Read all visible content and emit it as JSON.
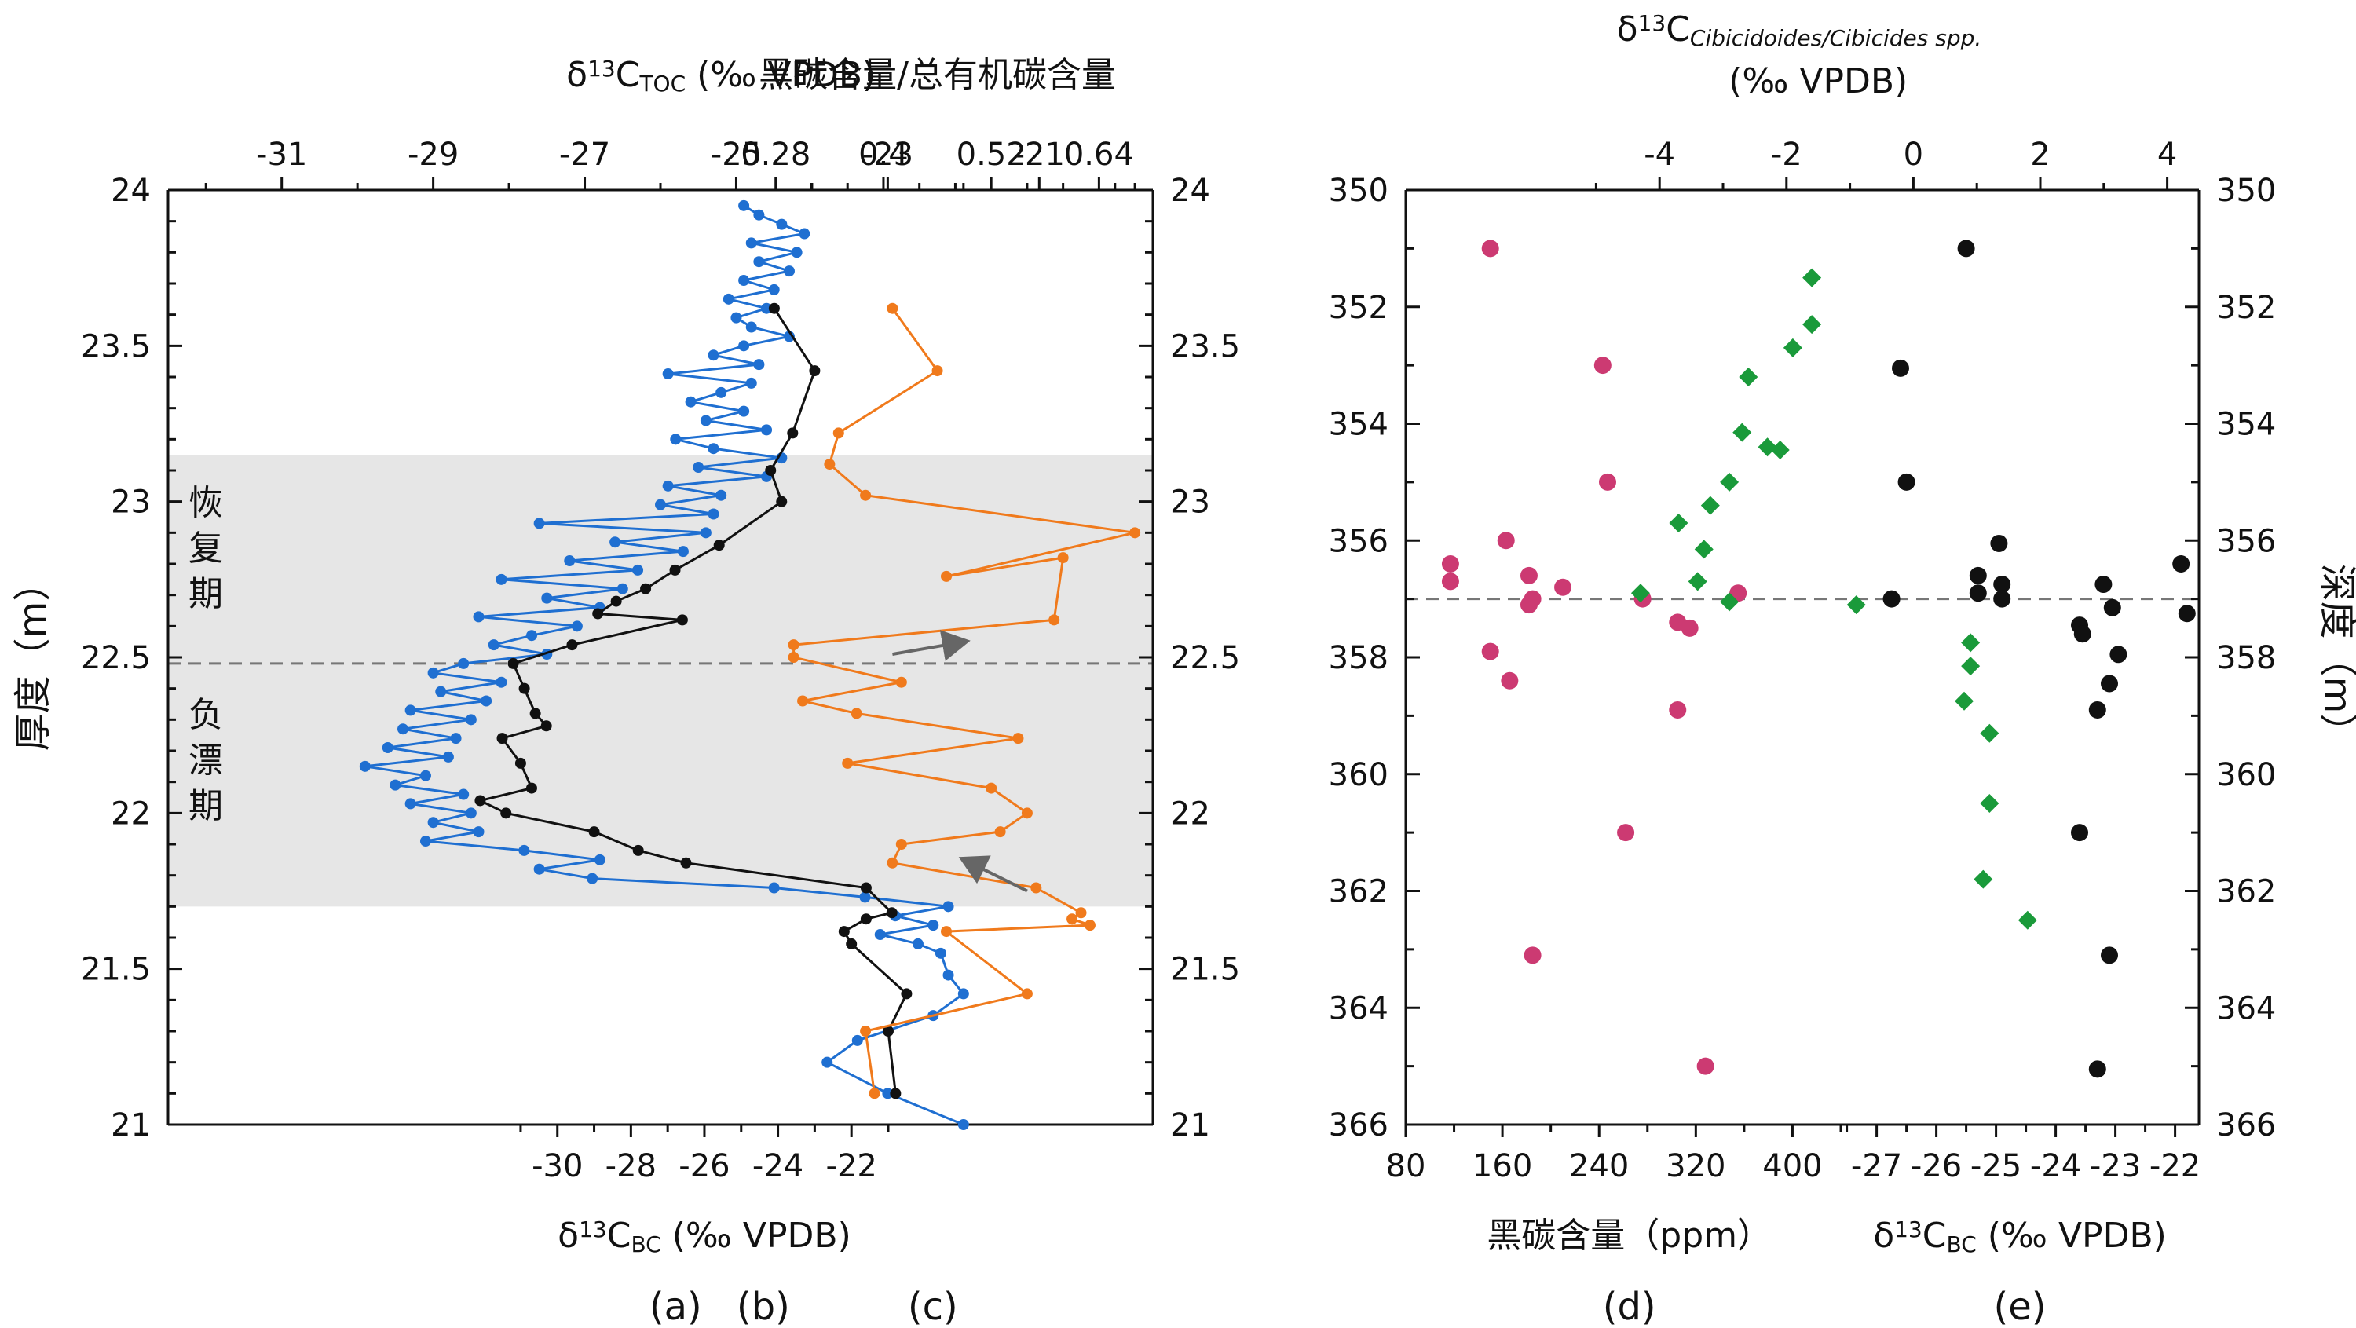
{
  "chart_data": [
    {
      "id": "a",
      "type": "line",
      "panel_label": "(a)",
      "xlabel": "δ13C_TOC (‰ VPDB)",
      "xlabel_parts": {
        "delta": "δ",
        "sup": "13",
        "base": "C",
        "sub": "TOC",
        "unit": " (‰ VPDB)"
      },
      "xlim": [
        -32.5,
        -19.5
      ],
      "xticks": [
        "-31",
        "-29",
        "-27",
        "-25",
        "-23",
        "-21"
      ],
      "ylabel": "厚度（m）",
      "ylim": [
        21,
        24
      ],
      "yticks": [
        "21",
        "21.5",
        "22",
        "22.5",
        "23",
        "23.5",
        "24"
      ],
      "shaded_band_y": [
        21.7,
        23.15
      ],
      "dashed_line_y": 22.48,
      "color": "#1f6fd1",
      "annotations": [
        {
          "text": "恢复期"
        },
        {
          "text": "负漂期"
        }
      ],
      "points": [
        [
          -24.9,
          23.95
        ],
        [
          -24.7,
          23.92
        ],
        [
          -24.4,
          23.89
        ],
        [
          -24.1,
          23.86
        ],
        [
          -24.8,
          23.83
        ],
        [
          -24.2,
          23.8
        ],
        [
          -24.7,
          23.77
        ],
        [
          -24.3,
          23.74
        ],
        [
          -24.9,
          23.71
        ],
        [
          -24.5,
          23.68
        ],
        [
          -25.1,
          23.65
        ],
        [
          -24.6,
          23.62
        ],
        [
          -25.0,
          23.59
        ],
        [
          -24.8,
          23.56
        ],
        [
          -24.3,
          23.53
        ],
        [
          -24.9,
          23.5
        ],
        [
          -25.3,
          23.47
        ],
        [
          -24.7,
          23.44
        ],
        [
          -25.9,
          23.41
        ],
        [
          -24.8,
          23.38
        ],
        [
          -25.2,
          23.35
        ],
        [
          -25.6,
          23.32
        ],
        [
          -24.9,
          23.29
        ],
        [
          -25.4,
          23.26
        ],
        [
          -24.6,
          23.23
        ],
        [
          -25.8,
          23.2
        ],
        [
          -25.3,
          23.17
        ],
        [
          -24.4,
          23.14
        ],
        [
          -25.5,
          23.11
        ],
        [
          -24.6,
          23.08
        ],
        [
          -25.9,
          23.05
        ],
        [
          -25.2,
          23.02
        ],
        [
          -26.0,
          22.99
        ],
        [
          -25.3,
          22.96
        ],
        [
          -27.6,
          22.93
        ],
        [
          -25.4,
          22.9
        ],
        [
          -26.6,
          22.87
        ],
        [
          -25.7,
          22.84
        ],
        [
          -27.2,
          22.81
        ],
        [
          -26.3,
          22.78
        ],
        [
          -28.1,
          22.75
        ],
        [
          -26.5,
          22.72
        ],
        [
          -27.5,
          22.69
        ],
        [
          -26.8,
          22.66
        ],
        [
          -28.4,
          22.63
        ],
        [
          -27.1,
          22.6
        ],
        [
          -27.7,
          22.57
        ],
        [
          -28.2,
          22.54
        ],
        [
          -27.5,
          22.51
        ],
        [
          -28.6,
          22.48
        ],
        [
          -29.0,
          22.45
        ],
        [
          -28.1,
          22.42
        ],
        [
          -28.9,
          22.39
        ],
        [
          -28.3,
          22.36
        ],
        [
          -29.3,
          22.33
        ],
        [
          -28.5,
          22.3
        ],
        [
          -29.4,
          22.27
        ],
        [
          -28.7,
          22.24
        ],
        [
          -29.6,
          22.21
        ],
        [
          -28.8,
          22.18
        ],
        [
          -29.9,
          22.15
        ],
        [
          -29.1,
          22.12
        ],
        [
          -29.5,
          22.09
        ],
        [
          -28.6,
          22.06
        ],
        [
          -29.3,
          22.03
        ],
        [
          -28.5,
          22.0
        ],
        [
          -29.0,
          21.97
        ],
        [
          -28.4,
          21.94
        ],
        [
          -29.1,
          21.91
        ],
        [
          -27.8,
          21.88
        ],
        [
          -26.8,
          21.85
        ],
        [
          -27.6,
          21.82
        ],
        [
          -26.9,
          21.79
        ],
        [
          -24.5,
          21.76
        ],
        [
          -23.3,
          21.73
        ],
        [
          -22.2,
          21.7
        ],
        [
          -22.9,
          21.67
        ],
        [
          -22.4,
          21.64
        ],
        [
          -23.1,
          21.61
        ],
        [
          -22.6,
          21.58
        ],
        [
          -22.3,
          21.55
        ],
        [
          -22.2,
          21.48
        ],
        [
          -22.0,
          21.42
        ],
        [
          -22.4,
          21.35
        ],
        [
          -23.4,
          21.27
        ],
        [
          -23.8,
          21.2
        ],
        [
          -23.0,
          21.1
        ],
        [
          -22.0,
          21.0
        ]
      ]
    },
    {
      "id": "b",
      "type": "line",
      "panel_label": "(b)",
      "xlabel": "δ13C_BC (‰ VPDB)",
      "xlabel_parts": {
        "delta": "δ",
        "sup": "13",
        "base": "C",
        "sub": "BC",
        "unit": " (‰ VPDB)"
      },
      "xlim": [
        -32.9,
        -13.8
      ],
      "xticks": [
        "-30",
        "-28",
        "-26",
        "-24",
        "-22"
      ],
      "color": "#111111",
      "points": [
        [
          -24.1,
          23.62
        ],
        [
          -23.0,
          23.42
        ],
        [
          -23.6,
          23.22
        ],
        [
          -24.2,
          23.1
        ],
        [
          -23.9,
          23.0
        ],
        [
          -25.6,
          22.86
        ],
        [
          -26.8,
          22.78
        ],
        [
          -27.6,
          22.72
        ],
        [
          -28.4,
          22.68
        ],
        [
          -28.9,
          22.64
        ],
        [
          -26.6,
          22.62
        ],
        [
          -29.6,
          22.54
        ],
        [
          -31.2,
          22.48
        ],
        [
          -30.9,
          22.4
        ],
        [
          -30.6,
          22.32
        ],
        [
          -30.3,
          22.28
        ],
        [
          -31.5,
          22.24
        ],
        [
          -31.0,
          22.16
        ],
        [
          -30.7,
          22.08
        ],
        [
          -32.1,
          22.04
        ],
        [
          -31.4,
          22.0
        ],
        [
          -29.0,
          21.94
        ],
        [
          -27.8,
          21.88
        ],
        [
          -26.5,
          21.84
        ],
        [
          -21.6,
          21.76
        ],
        [
          -20.9,
          21.68
        ],
        [
          -21.6,
          21.66
        ],
        [
          -22.2,
          21.62
        ],
        [
          -22.0,
          21.58
        ],
        [
          -20.5,
          21.42
        ],
        [
          -21.0,
          21.3
        ],
        [
          -20.8,
          21.1
        ]
      ]
    },
    {
      "id": "c",
      "type": "line",
      "panel_label": "(c)",
      "xlabel": "黑碳含量/总有机碳含量",
      "xlim": [
        0.24,
        0.7
      ],
      "xticks": [
        "0.28",
        "0.4",
        "0.52",
        "0.64"
      ],
      "color": "#f07a1c",
      "arrows": [
        {
          "from": [
            0.41,
            22.51
          ],
          "to": [
            0.49,
            22.55
          ]
        },
        {
          "from": [
            0.56,
            21.75
          ],
          "to": [
            0.49,
            21.85
          ]
        }
      ],
      "points": [
        [
          0.41,
          23.62
        ],
        [
          0.46,
          23.42
        ],
        [
          0.35,
          23.22
        ],
        [
          0.34,
          23.12
        ],
        [
          0.38,
          23.02
        ],
        [
          0.68,
          22.9
        ],
        [
          0.47,
          22.76
        ],
        [
          0.6,
          22.82
        ],
        [
          0.59,
          22.62
        ],
        [
          0.3,
          22.54
        ],
        [
          0.3,
          22.5
        ],
        [
          0.42,
          22.42
        ],
        [
          0.31,
          22.36
        ],
        [
          0.37,
          22.32
        ],
        [
          0.55,
          22.24
        ],
        [
          0.36,
          22.16
        ],
        [
          0.52,
          22.08
        ],
        [
          0.56,
          22.0
        ],
        [
          0.53,
          21.94
        ],
        [
          0.42,
          21.9
        ],
        [
          0.41,
          21.84
        ],
        [
          0.57,
          21.76
        ],
        [
          0.62,
          21.68
        ],
        [
          0.61,
          21.66
        ],
        [
          0.63,
          21.64
        ],
        [
          0.47,
          21.62
        ],
        [
          0.56,
          21.42
        ],
        [
          0.38,
          21.3
        ],
        [
          0.39,
          21.1
        ]
      ]
    },
    {
      "id": "d",
      "type": "scatter",
      "panel_label": "(d)",
      "xlabel": "黑碳含量（ppm）",
      "xlim": [
        80,
        440
      ],
      "xticks": [
        "80",
        "160",
        "240",
        "320",
        "400"
      ],
      "ylim": [
        366,
        350
      ],
      "yticks": [
        "350",
        "352",
        "354",
        "356",
        "358",
        "360",
        "362",
        "364",
        "366"
      ],
      "dashed_line_y": 357,
      "color": "#cc3a72",
      "points": [
        [
          150,
          351
        ],
        [
          243,
          353
        ],
        [
          247,
          355
        ],
        [
          163,
          356
        ],
        [
          117,
          356.4
        ],
        [
          117,
          356.7
        ],
        [
          182,
          356.6
        ],
        [
          210,
          356.8
        ],
        [
          182,
          357.1
        ],
        [
          185,
          357.0
        ],
        [
          276,
          357.0
        ],
        [
          355,
          356.9
        ],
        [
          305,
          357.4
        ],
        [
          315,
          357.5
        ],
        [
          150,
          357.9
        ],
        [
          166,
          358.4
        ],
        [
          305,
          358.9
        ],
        [
          262,
          361.0
        ],
        [
          185,
          363.1
        ],
        [
          328,
          365.0
        ]
      ]
    },
    {
      "id": "e",
      "type": "scatter",
      "panel_label": "(e)",
      "xlabel": "δ13C_BC (‰ VPDB)",
      "xlabel_parts": {
        "delta": "δ",
        "sup": "13",
        "base": "C",
        "sub": "BC",
        "unit": " (‰ VPDB)"
      },
      "xlim": [
        -27.6,
        -21.6
      ],
      "xticks": [
        "-27",
        "-26",
        "-25",
        "-24",
        "-23",
        "-22"
      ],
      "top_xlabel_parts": {
        "delta": "δ",
        "sup": "13",
        "base": "C",
        "sub": "Cibicidoides/Cibicides spp.",
        "unit": "(‰ VPDB)"
      },
      "top_xlim": [
        -8,
        4.5
      ],
      "top_xticks": [
        "-4",
        "-2",
        "0",
        "2",
        "4"
      ],
      "ylabel": "深度（m）",
      "ylim": [
        366,
        350
      ],
      "yticks": [
        "350",
        "352",
        "354",
        "356",
        "358",
        "360",
        "362",
        "364",
        "366"
      ],
      "dashed_line_y": 357,
      "series": [
        {
          "marker": "circle",
          "color": "#111111",
          "points": [
            [
              -25.5,
              351.0
            ],
            [
              -26.6,
              353.05
            ],
            [
              -26.5,
              355.0
            ],
            [
              -24.95,
              356.05
            ],
            [
              -21.9,
              356.4
            ],
            [
              -25.3,
              356.6
            ],
            [
              -24.9,
              356.75
            ],
            [
              -23.2,
              356.75
            ],
            [
              -26.75,
              357.0
            ],
            [
              -25.3,
              356.9
            ],
            [
              -24.9,
              357.0
            ],
            [
              -23.05,
              357.15
            ],
            [
              -23.6,
              357.45
            ],
            [
              -23.55,
              357.6
            ],
            [
              -22.95,
              357.95
            ],
            [
              -23.1,
              358.45
            ],
            [
              -23.3,
              358.9
            ],
            [
              -23.6,
              361.0
            ],
            [
              -23.1,
              363.1
            ],
            [
              -23.3,
              365.05
            ],
            [
              -21.8,
              357.25
            ]
          ]
        },
        {
          "marker": "diamond",
          "color": "#1a9a3a",
          "series_axis": "top",
          "points": [
            [
              -1.6,
              351.5
            ],
            [
              -1.6,
              352.3
            ],
            [
              -1.9,
              352.7
            ],
            [
              -2.6,
              353.2
            ],
            [
              -2.7,
              354.15
            ],
            [
              -2.3,
              354.4
            ],
            [
              -2.1,
              354.45
            ],
            [
              -2.9,
              355.0
            ],
            [
              -3.2,
              355.4
            ],
            [
              -3.7,
              355.7
            ],
            [
              -3.3,
              356.15
            ],
            [
              -3.4,
              356.7
            ],
            [
              -2.9,
              357.05
            ],
            [
              -4.3,
              356.9
            ],
            [
              -0.9,
              357.1
            ],
            [
              0.9,
              357.75
            ],
            [
              0.9,
              358.15
            ],
            [
              0.8,
              358.75
            ],
            [
              1.2,
              359.3
            ],
            [
              1.2,
              360.5
            ],
            [
              1.1,
              361.8
            ],
            [
              1.8,
              362.5
            ]
          ]
        }
      ]
    }
  ]
}
